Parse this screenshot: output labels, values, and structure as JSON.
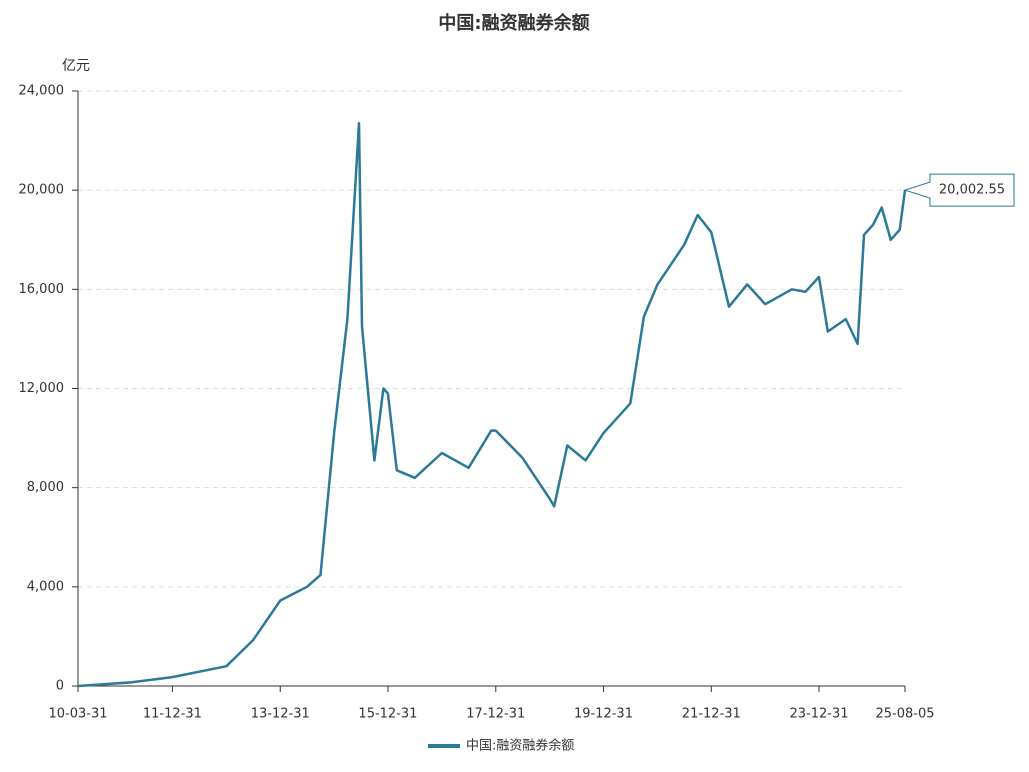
{
  "chart_data": {
    "type": "line",
    "title": "中国:融资融券余额",
    "y_label": "亿元",
    "x": [
      "10-03-31",
      "11-03-31",
      "11-12-31",
      "12-12-31",
      "13-06-30",
      "13-12-31",
      "14-06-30",
      "14-09-30",
      "14-12-31",
      "15-03-31",
      "15-06-18",
      "15-07-08",
      "15-09-30",
      "15-11-30",
      "15-12-31",
      "16-02-29",
      "16-06-30",
      "16-12-31",
      "17-06-30",
      "17-11-30",
      "17-12-31",
      "18-06-30",
      "18-12-31",
      "19-01-31",
      "19-04-30",
      "19-08-31",
      "19-12-31",
      "20-06-30",
      "20-09-30",
      "20-12-31",
      "21-06-30",
      "21-09-30",
      "21-12-31",
      "22-04-30",
      "22-08-31",
      "22-12-31",
      "23-06-30",
      "23-09-30",
      "23-12-31",
      "24-02-29",
      "24-06-30",
      "24-09-18",
      "24-10-31",
      "24-12-31",
      "25-02-28",
      "25-04-30",
      "25-06-30",
      "25-08-05"
    ],
    "series": [
      {
        "name": "中国:融资融券余额",
        "color": "#2b7a98",
        "values": [
          0,
          150,
          360,
          800,
          1850,
          3450,
          4000,
          4480,
          10200,
          14800,
          22700,
          14500,
          9100,
          12000,
          11800,
          8700,
          8400,
          9400,
          8800,
          10300,
          10300,
          9200,
          7560,
          7250,
          9700,
          9100,
          10200,
          11400,
          14900,
          16200,
          17800,
          19000,
          18300,
          15300,
          16200,
          15400,
          16000,
          15900,
          16500,
          14300,
          14800,
          13800,
          18200,
          18600,
          19300,
          18000,
          18400,
          20002.55
        ],
        "value_labels": [
          null,
          null,
          null,
          null,
          null,
          null,
          null,
          null,
          null,
          null,
          null,
          null,
          null,
          null,
          null,
          null,
          null,
          null,
          null,
          null,
          null,
          null,
          null,
          null,
          null,
          null,
          null,
          null,
          null,
          null,
          null,
          null,
          null,
          null,
          null,
          null,
          null,
          null,
          null,
          null,
          null,
          null,
          null,
          null,
          null,
          null,
          null,
          "20,002.55"
        ]
      }
    ],
    "xlim": [
      "10-03-31",
      "25-08-05"
    ],
    "xticks": [
      "10-03-31",
      "11-12-31",
      "13-12-31",
      "15-12-31",
      "17-12-31",
      "19-12-31",
      "21-12-31",
      "23-12-31",
      "25-08-05"
    ],
    "ylim": [
      0,
      24000
    ],
    "yticks": [
      0,
      {
        "value": 4000,
        "label": "4,000"
      },
      {
        "value": 8000,
        "label": "8,000"
      },
      {
        "value": 12000,
        "label": "12,000"
      },
      {
        "value": 16000,
        "label": "16,000"
      },
      {
        "value": 20000,
        "label": "20,000"
      },
      {
        "value": 24000,
        "label": "24,000"
      }
    ],
    "grid": true,
    "legend": "bottom"
  }
}
